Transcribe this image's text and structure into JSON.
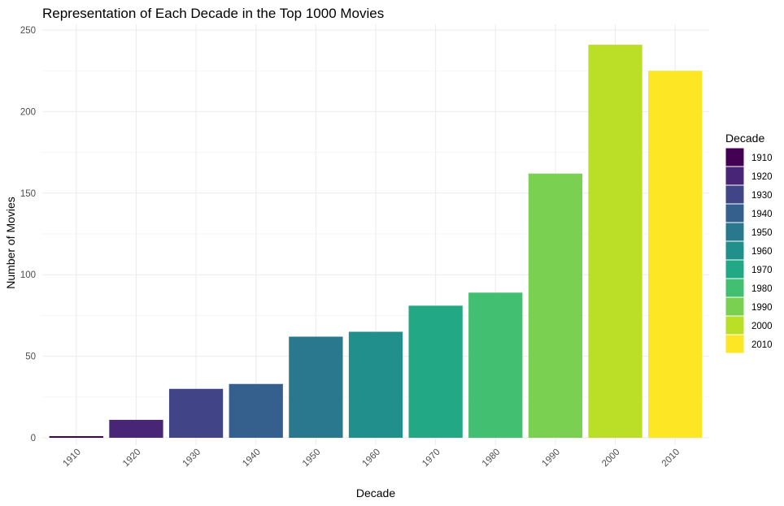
{
  "chart_data": {
    "type": "bar",
    "title": "Representation of Each Decade in the Top 1000 Movies",
    "xlabel": "Decade",
    "ylabel": "Number of Movies",
    "categories": [
      "1910",
      "1920",
      "1930",
      "1940",
      "1950",
      "1960",
      "1970",
      "1980",
      "1990",
      "2000",
      "2010"
    ],
    "values": [
      1,
      11,
      30,
      33,
      62,
      65,
      81,
      89,
      162,
      241,
      225
    ],
    "colors": [
      "#440154",
      "#482576",
      "#414487",
      "#35608d",
      "#2a788e",
      "#21908c",
      "#22a884",
      "#43bf71",
      "#7ad151",
      "#bbdf27",
      "#fde725"
    ],
    "ylim": [
      0,
      250
    ],
    "yticks": [
      0,
      50,
      100,
      150,
      200,
      250
    ],
    "grid": true,
    "legend": {
      "title": "Decade",
      "position": "right",
      "entries": [
        "1910",
        "1920",
        "1930",
        "1940",
        "1950",
        "1960",
        "1970",
        "1980",
        "1990",
        "2000",
        "2010"
      ]
    }
  }
}
